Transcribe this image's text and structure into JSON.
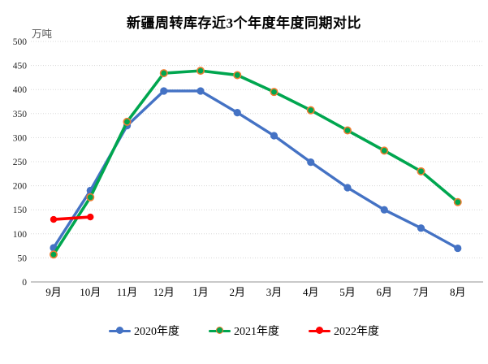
{
  "chart_data": {
    "type": "line",
    "title": "新疆周转库存近3个年度年度同期对比",
    "unit_label": "万吨",
    "categories": [
      "9月",
      "10月",
      "11月",
      "12月",
      "1月",
      "2月",
      "3月",
      "4月",
      "5月",
      "6月",
      "7月",
      "8月"
    ],
    "series": [
      {
        "name": "2020年度",
        "color": "#4472C4",
        "marker_border": null,
        "line_width": 3.4,
        "values": [
          71,
          190,
          325,
          397,
          397,
          352,
          304,
          249,
          196,
          150,
          112,
          70
        ]
      },
      {
        "name": "2021年度",
        "color": "#00A64F",
        "marker_border": "#ED7D31",
        "line_width": 3.6,
        "values": [
          57,
          176,
          333,
          434,
          439,
          430,
          395,
          357,
          315,
          273,
          230,
          166
        ]
      },
      {
        "name": "2022年度",
        "color": "#FF0000",
        "marker_border": null,
        "line_width": 3.6,
        "values": [
          130,
          135,
          null,
          null,
          null,
          null,
          null,
          null,
          null,
          null,
          null,
          null
        ]
      }
    ],
    "y_axis": {
      "min": 0,
      "max": 500,
      "step": 50,
      "ticks": [
        0,
        50,
        100,
        150,
        200,
        250,
        300,
        350,
        400,
        450,
        500
      ]
    },
    "grid": "horizontal-dotted",
    "legend_position": "bottom"
  }
}
